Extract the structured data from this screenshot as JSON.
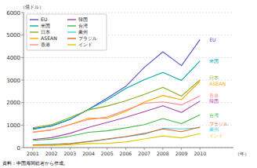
{
  "chart_data": {
    "type": "line",
    "x": [
      2001,
      2002,
      2003,
      2004,
      2005,
      2006,
      2007,
      2008,
      2009,
      2010
    ],
    "series": [
      {
        "name": "EU",
        "color": "#5555cc",
        "values": [
          850,
          950,
          1250,
          1700,
          2200,
          2720,
          3560,
          4255,
          3640,
          4800
        ]
      },
      {
        "name": "米国",
        "color": "#00aaaa",
        "values": [
          800,
          970,
          1260,
          1696,
          2116,
          2627,
          3020,
          3337,
          2983,
          3853
        ]
      },
      {
        "name": "日本",
        "color": "#88aa22",
        "values": [
          878,
          1015,
          1335,
          1678,
          1844,
          2073,
          2360,
          2678,
          2289,
          3012
        ]
      },
      {
        "name": "ASEAN",
        "color": "#ffaa00",
        "values": [
          695,
          782,
          1023,
          1305,
          1303,
          1602,
          2026,
          2315,
          2130,
          2948
        ]
      },
      {
        "name": "香港",
        "color": "#ff8888",
        "values": [
          670,
          788,
          1020,
          1244,
          1363,
          1662,
          1970,
          2030,
          1896,
          2303
        ]
      },
      {
        "name": "韓国",
        "color": "#aa44aa",
        "values": [
          359,
          441,
          632,
          900,
          1119,
          1343,
          1599,
          1861,
          1561,
          2071
        ]
      },
      {
        "name": "台湾",
        "color": "#44bb44",
        "values": [
          323,
          370,
          503,
          679,
          746,
          877,
          1023,
          1292,
          1063,
          1454
        ]
      },
      {
        "name": "豪州",
        "color": "#44ccee",
        "values": [
          120,
          144,
          183,
          276,
          356,
          479,
          596,
          853,
          826,
          883
        ]
      },
      {
        "name": "ブラジル",
        "color": "#dd6622",
        "values": [
          118,
          131,
          170,
          263,
          382,
          490,
          631,
          829,
          706,
          916
        ]
      },
      {
        "name": "インド",
        "color": "#ddcc00",
        "values": [
          76,
          89,
          128,
          179,
          187,
          248,
          386,
          518,
          433,
          618
        ]
      }
    ],
    "y_label": "（億ドル）",
    "x_label": "（年）",
    "source": "資料：中国海関総署から作成。",
    "xlim": [
      2000.5,
      2011.8
    ],
    "xticks": [
      2001,
      2002,
      2003,
      2004,
      2005,
      2006,
      2007,
      2008,
      2009,
      2010
    ],
    "ylim": [
      0,
      6000
    ],
    "yticks": [
      0,
      1000,
      2000,
      3000,
      4000,
      5000,
      6000
    ],
    "grid": true,
    "legend": "upper left"
  }
}
